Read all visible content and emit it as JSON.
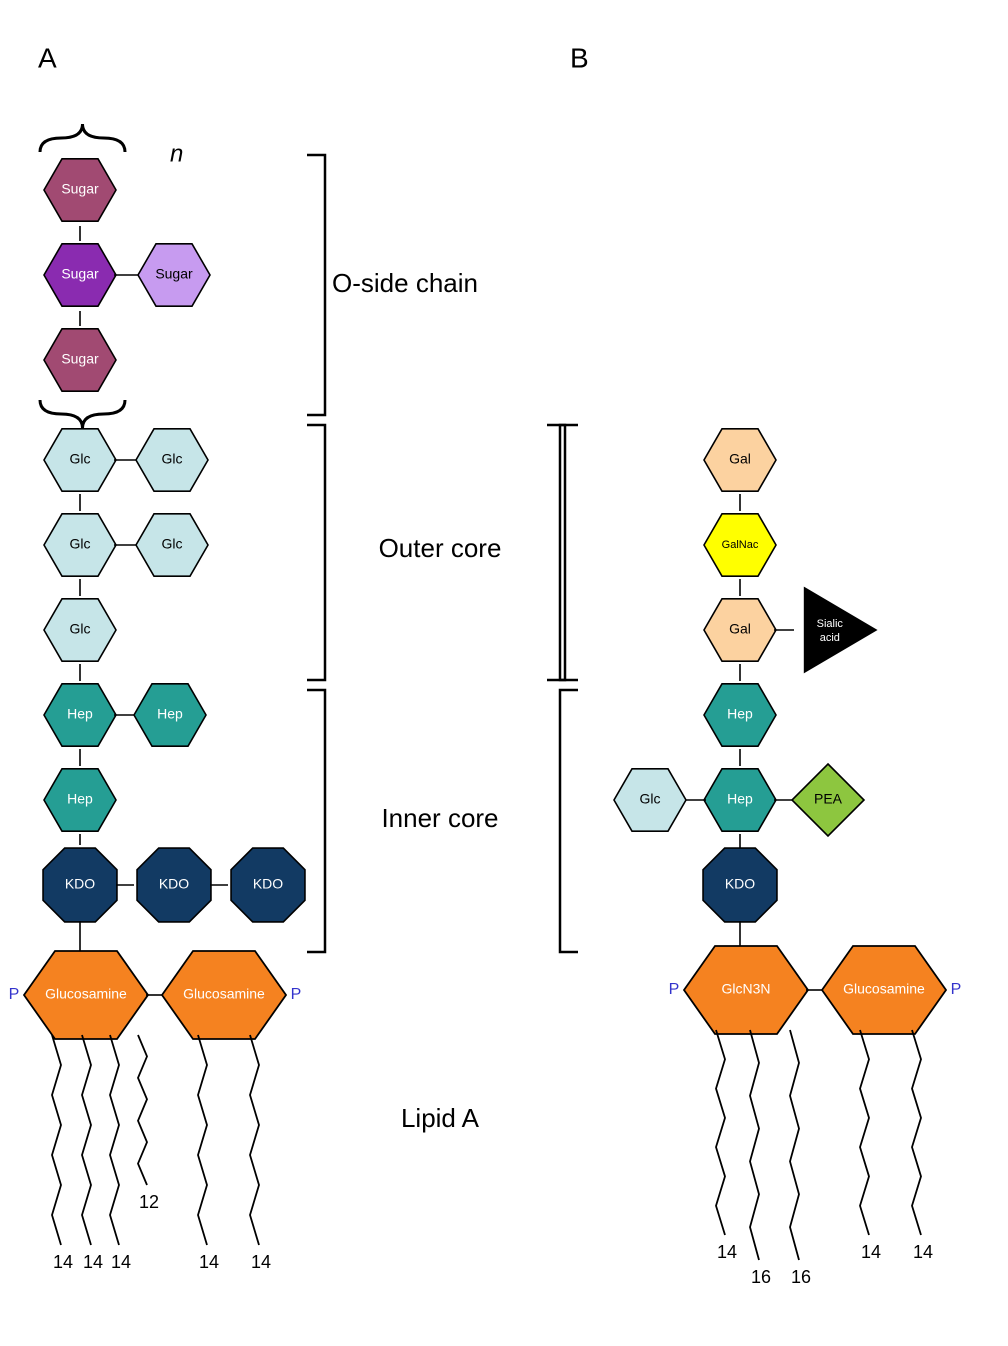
{
  "panel_labels": {
    "A": "A",
    "B": "B"
  },
  "region_labels": {
    "oside": "O-side chain",
    "outer": "Outer core",
    "inner": "Inner core",
    "lipidA": "Lipid A"
  },
  "repeat_symbol": "n",
  "phosphate": "P",
  "colors": {
    "sugar_maroon": "#a14a72",
    "sugar_purple": "#8a2bb0",
    "sugar_lilac": "#c79bf0",
    "glc": "#c6e5e8",
    "hep": "#259e94",
    "kdo": "#123a63",
    "glucosamine": "#f58220",
    "gal": "#fcd2a0",
    "galnac": "#ffff00",
    "pea": "#8dc63f",
    "sialic": "#000000",
    "stroke": "#000000",
    "brace": "#000000",
    "text_white": "#ffffff",
    "text_black": "#000000",
    "text_blue": "#3333cc",
    "bg": "#ffffff"
  },
  "fonts": {
    "panel": 28,
    "region": 26,
    "hex_label": 14,
    "hex_label_lg": 15,
    "tiny": 11,
    "lipid_num": 18,
    "repeat": 24
  },
  "panelA": {
    "oside": [
      {
        "label": "Sugar",
        "fill_key": "sugar_maroon",
        "text": "white"
      },
      {
        "label": "Sugar",
        "fill_key": "sugar_purple",
        "text": "white",
        "branch": {
          "label": "Sugar",
          "fill_key": "sugar_lilac",
          "text": "black"
        }
      },
      {
        "label": "Sugar",
        "fill_key": "sugar_maroon",
        "text": "white"
      }
    ],
    "outer": [
      {
        "label": "Glc",
        "fill_key": "glc",
        "text": "black",
        "branch": {
          "label": "Glc",
          "fill_key": "glc",
          "text": "black"
        }
      },
      {
        "label": "Glc",
        "fill_key": "glc",
        "text": "black",
        "branch": {
          "label": "Glc",
          "fill_key": "glc",
          "text": "black"
        }
      },
      {
        "label": "Glc",
        "fill_key": "glc",
        "text": "black"
      }
    ],
    "inner_hep": [
      {
        "label": "Hep",
        "fill_key": "hep",
        "text": "white",
        "branch": {
          "label": "Hep",
          "fill_key": "hep",
          "text": "white"
        }
      },
      {
        "label": "Hep",
        "fill_key": "hep",
        "text": "white"
      }
    ],
    "inner_kdo": [
      {
        "label": "KDO",
        "fill_key": "kdo",
        "text": "white"
      },
      {
        "label": "KDO",
        "fill_key": "kdo",
        "text": "white"
      },
      {
        "label": "KDO",
        "fill_key": "kdo",
        "text": "white"
      }
    ],
    "lipidA": {
      "left": {
        "label": "Glucosamine",
        "fill_key": "glucosamine",
        "text": "white"
      },
      "right": {
        "label": "Glucosamine",
        "fill_key": "glucosamine",
        "text": "white"
      }
    },
    "acyl": [
      "14",
      "14",
      "14",
      "12",
      "14",
      "14"
    ]
  },
  "panelB": {
    "outer": [
      {
        "label": "Gal",
        "fill_key": "gal",
        "text": "black"
      },
      {
        "label": "GalNac",
        "fill_key": "galnac",
        "text": "black"
      },
      {
        "label": "Gal",
        "fill_key": "gal",
        "text": "black",
        "sialic": {
          "label1": "Sialic",
          "label2": "acid",
          "fill_key": "sialic",
          "text": "white"
        }
      }
    ],
    "inner": [
      {
        "label": "Hep",
        "fill_key": "hep",
        "text": "white"
      },
      {
        "label": "Hep",
        "fill_key": "hep",
        "text": "white",
        "left_branch": {
          "label": "Glc",
          "fill_key": "glc",
          "text": "black"
        },
        "right_branch_diamond": {
          "label": "PEA",
          "fill_key": "pea",
          "text": "black"
        }
      },
      {
        "shape": "octagon",
        "label": "KDO",
        "fill_key": "kdo",
        "text": "white"
      }
    ],
    "lipidA": {
      "left": {
        "label": "GlcN3N",
        "fill_key": "glucosamine",
        "text": "white"
      },
      "right": {
        "label": "Glucosamine",
        "fill_key": "glucosamine",
        "text": "white"
      }
    },
    "acyl": [
      "14",
      "16",
      "16",
      "14",
      "14"
    ]
  }
}
